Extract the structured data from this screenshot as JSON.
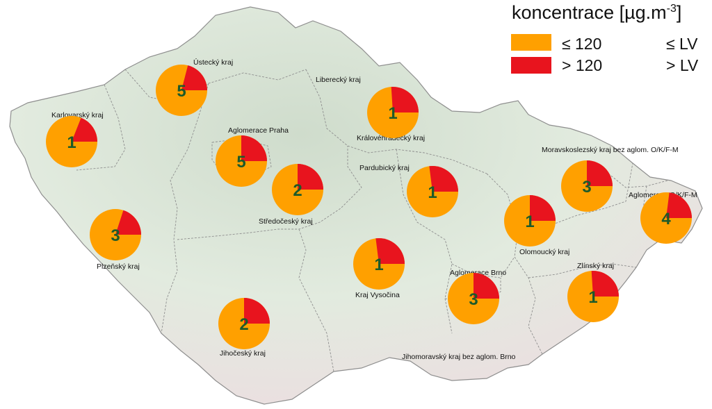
{
  "legend": {
    "title": "koncentrace [µg.m",
    "title_sup": "-3",
    "title_close": "]",
    "items": [
      {
        "label": "≤ 120",
        "lv": "≤  LV",
        "color": "#ffa000"
      },
      {
        "label": "> 120",
        "lv": ">  LV",
        "color": "#e8141e"
      }
    ]
  },
  "colors": {
    "below": "#ffa000",
    "above": "#e8141e",
    "count": "#1e5a2a",
    "land": "#e4ede2",
    "border": "#8e8e8e"
  },
  "regions": [
    {
      "id": "karlovarsky",
      "label": "Karlovarský kraj",
      "count": "1",
      "above_fraction": 0.19
    },
    {
      "id": "ustecky",
      "label": "Ústecký kraj",
      "count": "5",
      "above_fraction": 0.21
    },
    {
      "id": "liberecky",
      "label": "Liberecký kraj",
      "count": "",
      "above_fraction": null
    },
    {
      "id": "kralovehradecky",
      "label": "Královéhradecký kraj",
      "count": "1",
      "above_fraction": 0.26
    },
    {
      "id": "praha",
      "label": "Aglomerace Praha",
      "count": "5",
      "above_fraction": 0.25
    },
    {
      "id": "stredocesky",
      "label": "Středočeský kraj",
      "count": "2",
      "above_fraction": 0.25
    },
    {
      "id": "pardubicky",
      "label": "Pardubický kraj",
      "count": "1",
      "above_fraction": 0.27
    },
    {
      "id": "moravskoslezsky",
      "label": "Moravskoslezský kraj bez aglom. O/K/F-M",
      "count": "3",
      "above_fraction": 0.25
    },
    {
      "id": "aglomerace-okfm",
      "label": "Aglomerace O/K/F-M",
      "count": "4",
      "above_fraction": 0.23
    },
    {
      "id": "plzensky",
      "label": "Plzeňský kraj",
      "count": "3",
      "above_fraction": 0.2
    },
    {
      "id": "olomoucky",
      "label": "Olomoucký kraj",
      "count": "1",
      "above_fraction": 0.25
    },
    {
      "id": "vysocina",
      "label": "Kraj Vysočina",
      "count": "1",
      "above_fraction": 0.27
    },
    {
      "id": "brno",
      "label": "Aglomerace Brno",
      "count": "3",
      "above_fraction": 0.25
    },
    {
      "id": "zlinsky",
      "label": "Zlínský kraj",
      "count": "1",
      "above_fraction": 0.26
    },
    {
      "id": "jihocesky",
      "label": "Jihočeský kraj",
      "count": "2",
      "above_fraction": 0.25
    },
    {
      "id": "jihomoravsky",
      "label": "Jihomoravský kraj bez aglom. Brno",
      "count": "",
      "above_fraction": null
    }
  ]
}
